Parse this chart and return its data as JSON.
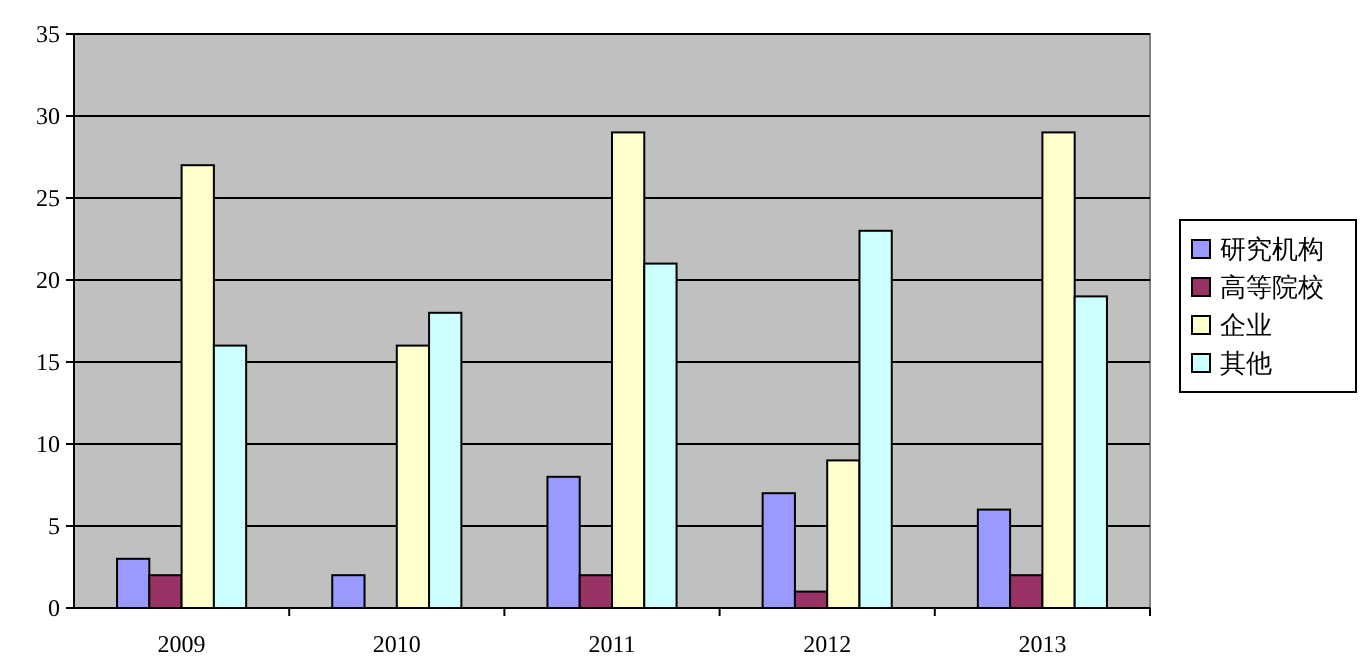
{
  "chart_data": {
    "type": "bar",
    "categories": [
      "2009",
      "2010",
      "2011",
      "2012",
      "2013"
    ],
    "series": [
      {
        "name": "研究机构",
        "color": "#9999ff",
        "values": [
          3,
          2,
          8,
          7,
          6
        ]
      },
      {
        "name": "高等院校",
        "color": "#993366",
        "values": [
          2,
          0,
          2,
          1,
          2
        ]
      },
      {
        "name": "企业",
        "color": "#ffffcc",
        "values": [
          27,
          16,
          29,
          9,
          29
        ]
      },
      {
        "name": "其他",
        "color": "#ccffff",
        "values": [
          16,
          18,
          21,
          23,
          19
        ]
      }
    ],
    "ylim": [
      0,
      35
    ],
    "yticks": [
      0,
      5,
      10,
      15,
      20,
      25,
      30,
      35
    ],
    "grid": "y",
    "legend": "right"
  }
}
